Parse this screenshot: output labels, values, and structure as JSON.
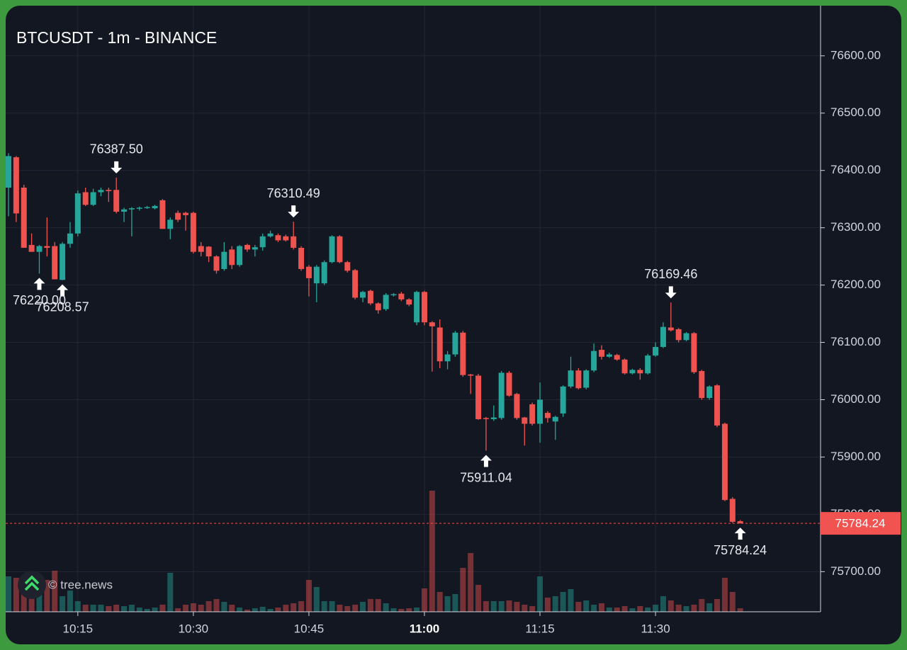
{
  "chart_data": {
    "type": "candlestick",
    "title": "BTCUSDT - 1m - BINANCE",
    "watermark": "© tree.news",
    "up_color": "#26a69a",
    "down_color": "#ef5350",
    "grid": true,
    "ylim": [
      75630,
      76685
    ],
    "yticks": [
      {
        "value": 75700,
        "label": "75700.00"
      },
      {
        "value": 75800,
        "label": "75800.00"
      },
      {
        "value": 75900,
        "label": "75900.00"
      },
      {
        "value": 76000,
        "label": "76000.00"
      },
      {
        "value": 76100,
        "label": "76100.00"
      },
      {
        "value": 76200,
        "label": "76200.00"
      },
      {
        "value": 76300,
        "label": "76300.00"
      },
      {
        "value": 76400,
        "label": "76400.00"
      },
      {
        "value": 76500,
        "label": "76500.00"
      },
      {
        "value": 76600,
        "label": "76600.00"
      }
    ],
    "categories": [
      null,
      null,
      null,
      null,
      null,
      null,
      null,
      null,
      null,
      "10:15",
      null,
      null,
      null,
      null,
      null,
      null,
      null,
      null,
      null,
      null,
      null,
      null,
      null,
      null,
      "10:30",
      null,
      null,
      null,
      null,
      null,
      null,
      null,
      null,
      null,
      null,
      null,
      null,
      null,
      null,
      "10:45",
      null,
      null,
      null,
      null,
      null,
      null,
      null,
      null,
      null,
      null,
      null,
      null,
      null,
      null,
      "11:00",
      null,
      null,
      null,
      null,
      null,
      null,
      null,
      null,
      null,
      null,
      null,
      null,
      null,
      null,
      "11:15",
      null,
      null,
      null,
      null,
      null,
      null,
      null,
      null,
      null,
      null,
      null,
      null,
      null,
      null,
      "11:30",
      null,
      null,
      null,
      null,
      null,
      null,
      null,
      null,
      null,
      null,
      null
    ],
    "open": [
      76370,
      76423,
      76370,
      76270,
      76258,
      76268,
      76268,
      76209,
      76272,
      76290,
      76362,
      76340,
      76362,
      76366,
      76366,
      76328,
      76332,
      76334,
      76335,
      76334,
      76348,
      76298,
      76326,
      76326,
      76326,
      76268,
      76267,
      76250,
      76228,
      76262,
      76235,
      76270,
      76262,
      76266,
      76285,
      76287,
      76285,
      76285,
      76265,
      76232,
      76203,
      76203,
      76240,
      76285,
      76240,
      76226,
      76178,
      76190,
      76168,
      76158,
      76183,
      76185,
      76175,
      76135,
      76188,
      76135,
      76126,
      76067,
      76079,
      76117,
      76044,
      76042,
      75968,
      75966,
      75968,
      76047,
      76010,
      75969,
      75992,
      75958,
      75977,
      75962,
      75976,
      76023,
      76051,
      76021,
      76051,
      76087,
      76075,
      76078,
      76070,
      76046,
      76052,
      76046,
      76077,
      76092,
      76126,
      76123,
      76104,
      76116,
      76050,
      76003,
      76025,
      75958,
      75827,
      75788
    ],
    "high": [
      76430,
      76425,
      76375,
      76290,
      76270,
      76318,
      76275,
      76275,
      76310,
      76365,
      76370,
      76368,
      76370,
      76370,
      76387.5,
      76335,
      76336,
      76337,
      76338,
      76340,
      76350,
      76318,
      76330,
      76328,
      76328,
      76275,
      76268,
      76252,
      76275,
      76268,
      76270,
      76272,
      76270,
      76290,
      76295,
      76290,
      76288,
      76310.49,
      76268,
      76235,
      76235,
      76243,
      76287,
      76287,
      76242,
      76228,
      76190,
      76192,
      76170,
      76186,
      76186,
      76188,
      76177,
      76190,
      76190,
      76137,
      76140,
      76085,
      76120,
      76120,
      76045,
      76045,
      75970,
      75990,
      76050,
      76050,
      76012,
      75970,
      75995,
      76030,
      75980,
      75972,
      76025,
      76075,
      76055,
      76053,
      76098,
      76095,
      76082,
      76080,
      76072,
      76054,
      76055,
      76080,
      76100,
      76135,
      76169.46,
      76125,
      76118,
      76118,
      76052,
      76025,
      76027,
      75960,
      75830,
      75790
    ],
    "low": [
      76320,
      76310,
      76265,
      76258,
      76220,
      76250,
      76210,
      76208.57,
      76265,
      76285,
      76338,
      76338,
      76355,
      76345,
      76325,
      76310,
      76285,
      76330,
      76333,
      76332,
      76298,
      76280,
      76310,
      76295,
      76255,
      76250,
      76240,
      76220,
      76225,
      76228,
      76232,
      76258,
      76250,
      76260,
      76283,
      76275,
      76276,
      76262,
      76225,
      76180,
      76170,
      76200,
      76238,
      76238,
      76222,
      76175,
      76170,
      76165,
      76150,
      76155,
      76180,
      76172,
      76163,
      76130,
      76130,
      76049,
      76055,
      76053,
      76075,
      76040,
      76010,
      75965,
      75911.04,
      75963,
      75965,
      76005,
      75965,
      75920,
      75955,
      75925,
      75960,
      75930,
      75970,
      76020,
      76018,
      76018,
      76048,
      76070,
      76073,
      76068,
      76044,
      76044,
      76035,
      76044,
      76075,
      76090,
      76119,
      76100,
      76102,
      76045,
      76000,
      76000,
      75952,
      75823,
      75785,
      75784.24
    ],
    "close": [
      76425,
      76325,
      76265,
      76258,
      76268,
      76265,
      76210,
      76272,
      76290,
      76360,
      76340,
      76362,
      76366,
      76364,
      76328,
      76332,
      76334,
      76335,
      76336,
      76338,
      76298,
      76314,
      76314,
      76322,
      76258,
      76258,
      76250,
      76225,
      76258,
      76235,
      76268,
      76262,
      76266,
      76285,
      76290,
      76278,
      76278,
      76265,
      76228,
      76212,
      76232,
      76240,
      76285,
      76240,
      76225,
      76178,
      76188,
      76168,
      76156,
      76183,
      76184,
      76175,
      76166,
      76188,
      76135,
      76128,
      76067,
      76079,
      76117,
      76043,
      76042,
      75966,
      75967,
      75969,
      76047,
      76007,
      75968,
      75958,
      75958,
      76000,
      75968,
      75970,
      76023,
      76051,
      76020,
      76051,
      76085,
      76075,
      76079,
      76070,
      76046,
      76052,
      76046,
      76077,
      76092,
      76127,
      76121,
      76104,
      76116,
      76048,
      76003,
      76023,
      75955,
      75825,
      75787,
      75784.24
    ],
    "volume": [
      50,
      48,
      28,
      40,
      35,
      45,
      58,
      22,
      30,
      15,
      10,
      10,
      10,
      8,
      10,
      8,
      10,
      6,
      4,
      6,
      10,
      55,
      5,
      10,
      12,
      10,
      15,
      18,
      14,
      10,
      6,
      3,
      5,
      7,
      4,
      6,
      10,
      12,
      15,
      45,
      35,
      15,
      15,
      10,
      8,
      10,
      14,
      18,
      18,
      12,
      5,
      4,
      5,
      6,
      33,
      171,
      28,
      22,
      25,
      62,
      83,
      38,
      15,
      15,
      15,
      16,
      14,
      10,
      8,
      50,
      20,
      22,
      28,
      32,
      14,
      16,
      10,
      12,
      6,
      6,
      8,
      5,
      8,
      6,
      10,
      22,
      16,
      10,
      8,
      10,
      18,
      12,
      18,
      48,
      28,
      5
    ],
    "annotations": [
      {
        "value": 76387.5,
        "label": "76387.50",
        "direction": "down"
      },
      {
        "value": 76208.57,
        "label": "76208.57",
        "direction": "up"
      },
      {
        "value": 76220,
        "label": "76220.00",
        "direction": "up"
      },
      {
        "value": 76310.49,
        "label": "76310.49",
        "direction": "down"
      },
      {
        "value": 75911.04,
        "label": "75911.04",
        "direction": "up"
      },
      {
        "value": 76169.46,
        "label": "76169.46",
        "direction": "down"
      },
      {
        "value": 75784.24,
        "label": "75784.24",
        "direction": "up"
      }
    ],
    "last_price": {
      "value": 75784.24,
      "label": "75784.24",
      "color": "#f05350"
    }
  }
}
